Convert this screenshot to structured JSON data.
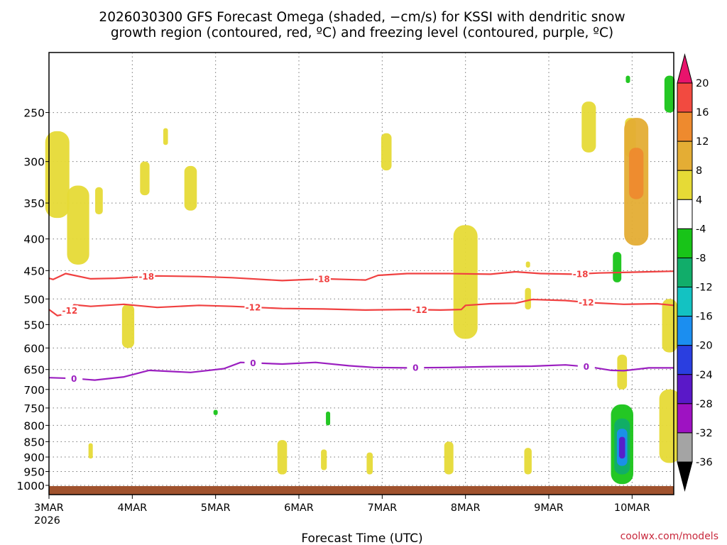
{
  "title_line1": "2026030300 GFS Forecast Omega (shaded, −cm/s) for KSSI with dendritic snow",
  "title_line2": "growth region (contoured, red, ºC) and freezing level (contoured, purple, ºC)",
  "x_axis_label": "Forecast Time (UTC)",
  "credit": "coolwx.com/models",
  "colors": {
    "dgz_red": "#f04040",
    "freezing_purple": "#9b1fc0",
    "ground_brown": "#a0522d",
    "grid": "#888888"
  },
  "chart_data": {
    "type": "heatmap",
    "title": "2026030300 GFS Forecast Omega (shaded, −cm/s) for KSSI with dendritic snow growth region (contoured, red, ºC) and freezing level (contoured, purple, ºC)",
    "xlabel": "Forecast Time (UTC)",
    "ylabel": "",
    "x_ticks": [
      "3MAR",
      "4MAR",
      "5MAR",
      "6MAR",
      "7MAR",
      "8MAR",
      "9MAR",
      "10MAR"
    ],
    "x_year": "2026",
    "x_range_days": [
      0,
      7.5
    ],
    "y_ticks": [
      250,
      300,
      350,
      400,
      450,
      500,
      550,
      600,
      650,
      700,
      750,
      800,
      850,
      900,
      950,
      1000
    ],
    "y_range_hpa": [
      1035,
      200
    ],
    "y_scale": "log-pressure",
    "grid": true,
    "colorbar": {
      "levels": [
        "20",
        "16",
        "12",
        "8",
        "4",
        "-4",
        "-8",
        "-12",
        "-16",
        "-20",
        "-24",
        "-28",
        "-32",
        "-36"
      ],
      "colors": [
        "#e8136c",
        "#f24a40",
        "#ee8a2e",
        "#e4ad34",
        "#e6da36",
        "#ffffff",
        "#18c418",
        "#11ad6a",
        "#13c2c2",
        "#1b8ef0",
        "#2a3ee0",
        "#5a18c8",
        "#9e12c2",
        "#a4a4a4",
        "#000000"
      ]
    },
    "series": [
      {
        "name": "-18",
        "color": "#f04040",
        "label_days": [
          1.17,
          3.28,
          6.38
        ],
        "points": [
          [
            0,
            463
          ],
          [
            0.05,
            465
          ],
          [
            0.2,
            455
          ],
          [
            0.5,
            464
          ],
          [
            0.8,
            463
          ],
          [
            1.3,
            459
          ],
          [
            1.8,
            460
          ],
          [
            2.2,
            462
          ],
          [
            2.8,
            467
          ],
          [
            3.3,
            464
          ],
          [
            3.8,
            466
          ],
          [
            3.95,
            458
          ],
          [
            4.3,
            455
          ],
          [
            4.8,
            455
          ],
          [
            5.3,
            456
          ],
          [
            5.6,
            452
          ],
          [
            5.9,
            455
          ],
          [
            6.3,
            456
          ],
          [
            6.6,
            454
          ],
          [
            6.9,
            453
          ],
          [
            7.2,
            452
          ],
          [
            7.5,
            451
          ]
        ]
      },
      {
        "name": "-12",
        "color": "#f04040",
        "label_days": [
          0.25,
          2.45,
          4.45,
          6.45
        ],
        "points": [
          [
            0,
            520
          ],
          [
            0.1,
            532
          ],
          [
            0.22,
            528
          ],
          [
            0.3,
            511
          ],
          [
            0.5,
            514
          ],
          [
            0.9,
            510
          ],
          [
            1.3,
            516
          ],
          [
            1.8,
            512
          ],
          [
            2.2,
            514
          ],
          [
            2.8,
            518
          ],
          [
            3.3,
            519
          ],
          [
            3.8,
            521
          ],
          [
            4.3,
            520
          ],
          [
            4.7,
            521
          ],
          [
            4.95,
            520
          ],
          [
            5.0,
            512
          ],
          [
            5.3,
            509
          ],
          [
            5.6,
            508
          ],
          [
            5.8,
            501
          ],
          [
            6.2,
            503
          ],
          [
            6.5,
            507
          ],
          [
            6.9,
            510
          ],
          [
            7.3,
            509
          ],
          [
            7.5,
            512
          ]
        ]
      },
      {
        "name": "0",
        "color": "#9b1fc0",
        "label_days": [
          0.3,
          2.45,
          4.4,
          6.45
        ],
        "points": [
          [
            0,
            670
          ],
          [
            0.3,
            672
          ],
          [
            0.55,
            676
          ],
          [
            0.9,
            668
          ],
          [
            1.2,
            652
          ],
          [
            1.7,
            657
          ],
          [
            2.1,
            648
          ],
          [
            2.3,
            633
          ],
          [
            2.8,
            637
          ],
          [
            3.2,
            633
          ],
          [
            3.6,
            641
          ],
          [
            3.9,
            645
          ],
          [
            4.3,
            646
          ],
          [
            4.8,
            645
          ],
          [
            5.3,
            643
          ],
          [
            5.8,
            642
          ],
          [
            6.2,
            639
          ],
          [
            6.5,
            644
          ],
          [
            6.75,
            652
          ],
          [
            6.9,
            653
          ],
          [
            7.2,
            646
          ],
          [
            7.5,
            646
          ]
        ]
      }
    ],
    "omega_regions": [
      {
        "day": 0.1,
        "p1": 268,
        "p2": 370,
        "value": 4
      },
      {
        "day": 0.35,
        "p1": 328,
        "p2": 440,
        "value": 4
      },
      {
        "day": 0.6,
        "p1": 330,
        "p2": 365,
        "value": 4
      },
      {
        "day": 0.95,
        "p1": 510,
        "p2": 600,
        "value": 4
      },
      {
        "day": 1.15,
        "p1": 300,
        "p2": 340,
        "value": 4
      },
      {
        "day": 1.4,
        "p1": 265,
        "p2": 282,
        "value": 4
      },
      {
        "day": 1.7,
        "p1": 305,
        "p2": 360,
        "value": 4
      },
      {
        "day": 4.05,
        "p1": 270,
        "p2": 310,
        "value": 4
      },
      {
        "day": 5.0,
        "p1": 380,
        "p2": 580,
        "value": 4
      },
      {
        "day": 5.75,
        "p1": 435,
        "p2": 445,
        "value": 4
      },
      {
        "day": 5.75,
        "p1": 480,
        "p2": 520,
        "value": 4
      },
      {
        "day": 5.75,
        "p1": 870,
        "p2": 960,
        "value": 4
      },
      {
        "day": 6.48,
        "p1": 240,
        "p2": 290,
        "value": 4
      },
      {
        "day": 6.98,
        "p1": 255,
        "p2": 295,
        "value": 4
      },
      {
        "day": 7.05,
        "p1": 255,
        "p2": 410,
        "value": 8
      },
      {
        "day": 7.05,
        "p1": 285,
        "p2": 345,
        "value": 12
      },
      {
        "day": 6.88,
        "p1": 615,
        "p2": 700,
        "value": 4
      },
      {
        "day": 7.45,
        "p1": 500,
        "p2": 610,
        "value": 4
      },
      {
        "day": 7.45,
        "p1": 700,
        "p2": 920,
        "value": 4
      },
      {
        "day": 3.3,
        "p1": 875,
        "p2": 945,
        "value": 4
      },
      {
        "day": 2.8,
        "p1": 845,
        "p2": 960,
        "value": 4
      },
      {
        "day": 0.5,
        "p1": 855,
        "p2": 905,
        "value": 4
      },
      {
        "day": 3.85,
        "p1": 885,
        "p2": 960,
        "value": 4
      },
      {
        "day": 4.8,
        "p1": 850,
        "p2": 960,
        "value": 4
      },
      {
        "day": 6.88,
        "p1": 740,
        "p2": 995,
        "value": -4
      },
      {
        "day": 6.88,
        "p1": 780,
        "p2": 960,
        "value": -12
      },
      {
        "day": 6.88,
        "p1": 810,
        "p2": 930,
        "value": -20
      },
      {
        "day": 6.88,
        "p1": 835,
        "p2": 905,
        "value": -28
      },
      {
        "day": 6.82,
        "p1": 420,
        "p2": 470,
        "value": -4
      },
      {
        "day": 7.45,
        "p1": 218,
        "p2": 250,
        "value": -4
      },
      {
        "day": 6.95,
        "p1": 218,
        "p2": 224,
        "value": -4
      },
      {
        "day": 2.0,
        "p1": 755,
        "p2": 770,
        "value": -4
      },
      {
        "day": 3.35,
        "p1": 760,
        "p2": 800,
        "value": -4
      }
    ]
  }
}
